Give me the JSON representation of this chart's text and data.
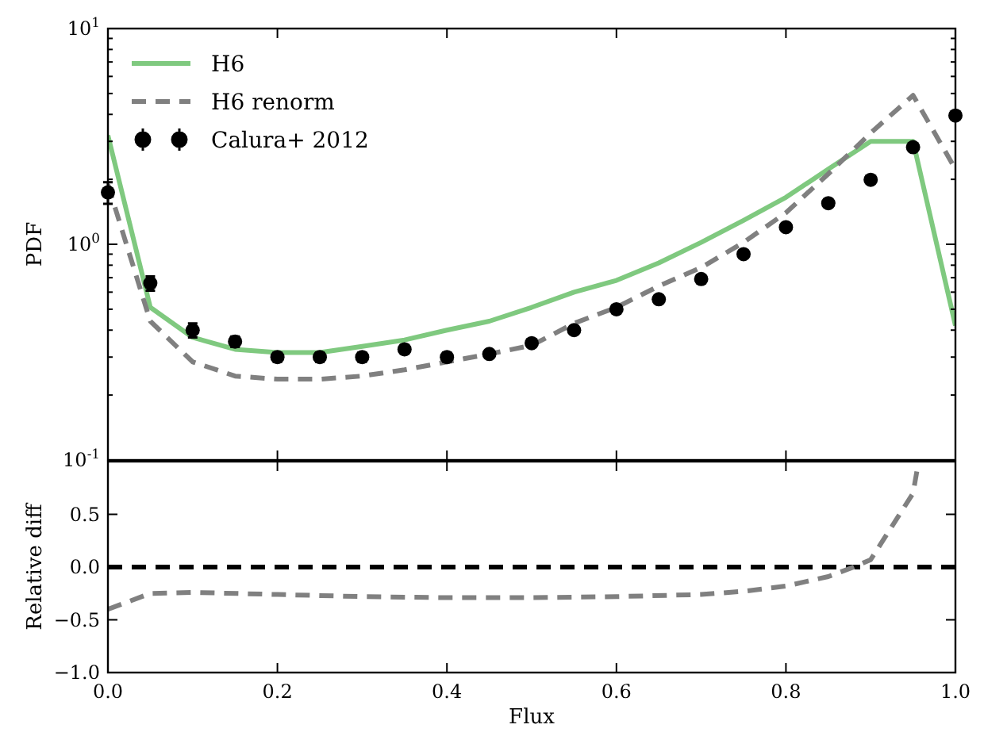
{
  "chart_data": [
    {
      "type": "line",
      "ylabel": "PDF",
      "log": "y",
      "xlim": [
        0,
        1
      ],
      "ylim": [
        0.1,
        10
      ],
      "tick_labels": "y",
      "legend": "top left",
      "xticks": [
        0,
        0.2,
        0.4,
        0.6,
        0.8,
        1
      ],
      "yticks": [
        {
          "value": 0.1,
          "label": "10$^{-1}$"
        },
        {
          "value": 0.2,
          "label": null
        },
        {
          "value": 0.3,
          "label": null
        },
        {
          "value": 0.4,
          "label": null
        },
        {
          "value": 0.5,
          "label": null
        },
        {
          "value": 0.6,
          "label": null
        },
        {
          "value": 0.7,
          "label": null
        },
        {
          "value": 0.8,
          "label": null
        },
        {
          "value": 0.9,
          "label": null
        },
        {
          "value": 1,
          "label": "10$^{0}$"
        },
        {
          "value": 2,
          "label": null
        },
        {
          "value": 3,
          "label": null
        },
        {
          "value": 4,
          "label": null
        },
        {
          "value": 5,
          "label": null
        },
        {
          "value": 6,
          "label": null
        },
        {
          "value": 7,
          "label": null
        },
        {
          "value": 8,
          "label": null
        },
        {
          "value": 9,
          "label": null
        },
        {
          "value": 10,
          "label": "10$^{1}$"
        }
      ],
      "x": [
        0,
        0.05,
        0.1,
        0.15,
        0.2,
        0.25,
        0.3,
        0.35,
        0.4,
        0.45,
        0.5,
        0.55,
        0.6,
        0.65,
        0.7,
        0.75,
        0.8,
        0.85,
        0.9,
        0.95,
        1
      ],
      "series": [
        {
          "name": "H6",
          "color": "#7fc97f",
          "line_style": "solid",
          "values": [
            3.2,
            0.51,
            0.37,
            0.326,
            0.315,
            0.315,
            0.336,
            0.36,
            0.4,
            0.44,
            0.51,
            0.6,
            0.68,
            0.82,
            1.02,
            1.29,
            1.65,
            2.23,
            3.0,
            3.0,
            0.42
          ]
        },
        {
          "name": "H6 renorm",
          "color": "#808080",
          "line_style": "dashed",
          "values": [
            1.89,
            0.44,
            0.285,
            0.245,
            0.237,
            0.237,
            0.245,
            0.262,
            0.285,
            0.31,
            0.34,
            0.43,
            0.51,
            0.64,
            0.78,
            1.02,
            1.4,
            2.12,
            3.28,
            4.9,
            2.23
          ]
        },
        {
          "name": "Calura+ 2012",
          "type": "scatter",
          "color": "#000000",
          "marker": "circle",
          "values": [
            1.74,
            0.66,
            0.4,
            0.354,
            0.3,
            0.3,
            0.3,
            0.326,
            0.3,
            0.31,
            0.348,
            0.4,
            0.5,
            0.556,
            0.69,
            0.9,
            1.2,
            1.55,
            1.99,
            2.82,
            3.95
          ],
          "errors": [
            0.2,
            0.05,
            0.03,
            0.02,
            0.015,
            0.015,
            0.015,
            0.015,
            0.015,
            null,
            null,
            null,
            null,
            null,
            null,
            null,
            null,
            null,
            null,
            null,
            null
          ]
        }
      ]
    },
    {
      "type": "line",
      "xlabel": "Flux",
      "ylabel": "Relative diff",
      "xlim": [
        0,
        1
      ],
      "ylim": [
        -1,
        1
      ],
      "xticks": [
        {
          "value": 0,
          "label": "0.0"
        },
        {
          "value": 0.2,
          "label": "0.2"
        },
        {
          "value": 0.4,
          "label": "0.4"
        },
        {
          "value": 0.6,
          "label": "0.6"
        },
        {
          "value": 0.8,
          "label": "0.8"
        },
        {
          "value": 1,
          "label": "1.0"
        }
      ],
      "yticks": [
        {
          "value": -1,
          "label": "−1.0"
        },
        {
          "value": -0.5,
          "label": "−0.5"
        },
        {
          "value": 0,
          "label": "0.0"
        },
        {
          "value": 0.5,
          "label": "0.5"
        }
      ],
      "ref_lines": [
        {
          "axis": "y",
          "value": 0,
          "color": "#000000",
          "line_style": "dashed"
        }
      ],
      "series": [
        {
          "color": "#808080",
          "line_style": "dashed",
          "x": [
            0,
            0.05,
            0.1,
            0.2,
            0.3,
            0.4,
            0.5,
            0.6,
            0.7,
            0.75,
            0.8,
            0.85,
            0.88,
            0.9,
            0.95,
            0.955
          ],
          "values": [
            -0.4,
            -0.25,
            -0.24,
            -0.26,
            -0.28,
            -0.29,
            -0.29,
            -0.28,
            -0.26,
            -0.23,
            -0.18,
            -0.09,
            0,
            0.07,
            0.7,
            0.93
          ]
        }
      ]
    }
  ]
}
